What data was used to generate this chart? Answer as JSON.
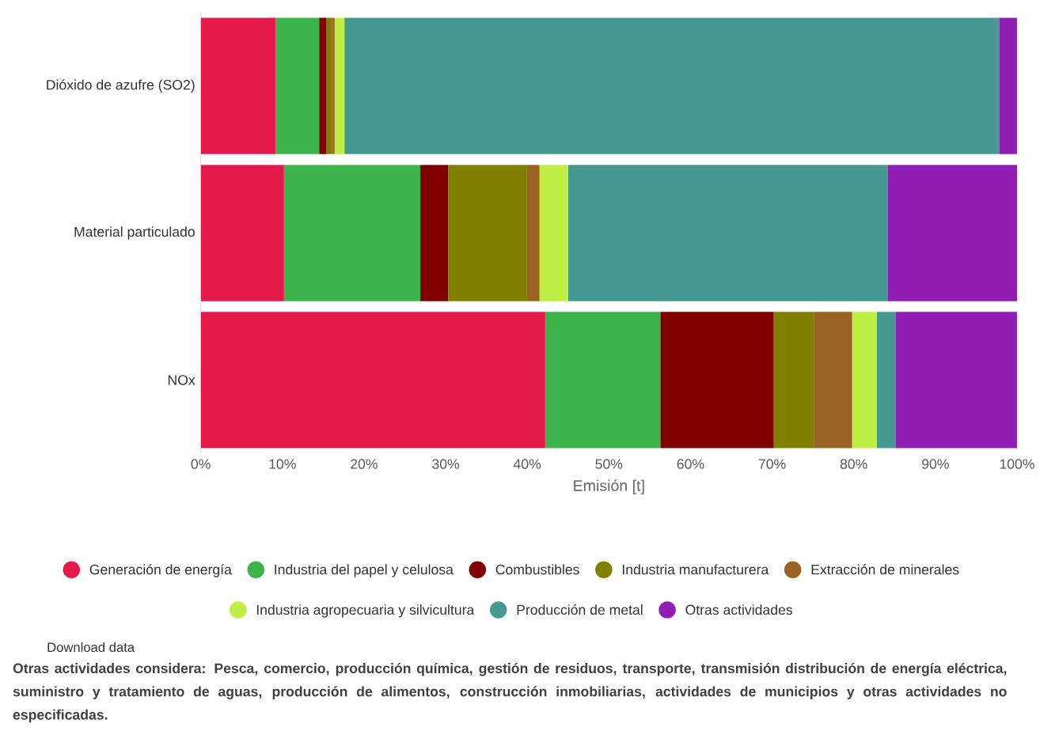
{
  "chart_data": {
    "type": "bar",
    "orientation": "horizontal",
    "stacked": true,
    "xlabel": "Emisión [t]",
    "categories": [
      "Dióxido de azufre (SO2)",
      "Material particulado",
      "NOx"
    ],
    "series": [
      {
        "name": "Generación de energía",
        "color": "#e41a4b",
        "values": [
          9.2,
          10.2,
          42.2
        ]
      },
      {
        "name": "Industria del papel y celulosa",
        "color": "#3cb44b",
        "values": [
          5.3,
          16.7,
          14.1
        ]
      },
      {
        "name": "Combustibles",
        "color": "#800000",
        "values": [
          0.9,
          3.4,
          13.9
        ]
      },
      {
        "name": "Industria manufacturera",
        "color": "#808000",
        "values": [
          0.7,
          9.6,
          4.9
        ]
      },
      {
        "name": "Extracción de minerales",
        "color": "#9a6324",
        "values": [
          0.3,
          1.6,
          4.7
        ]
      },
      {
        "name": "Industria agropecuaria y silvicultura",
        "color": "#bfef45",
        "values": [
          1.2,
          3.5,
          3.0
        ]
      },
      {
        "name": "Producción de metal",
        "color": "#469990",
        "values": [
          80.2,
          39.2,
          2.3
        ]
      },
      {
        "name": "Otras actividades",
        "color": "#911eb4",
        "values": [
          2.2,
          15.9,
          14.9
        ]
      }
    ],
    "xlim": [
      0,
      100
    ],
    "xticks": [
      {
        "value": 0,
        "label": "0%"
      },
      {
        "value": 10,
        "label": "10%"
      },
      {
        "value": 20,
        "label": "20%"
      },
      {
        "value": 30,
        "label": "30%"
      },
      {
        "value": 40,
        "label": "40%"
      },
      {
        "value": 50,
        "label": "50%"
      },
      {
        "value": 60,
        "label": "60%"
      },
      {
        "value": 70,
        "label": "70%"
      },
      {
        "value": 80,
        "label": "80%"
      },
      {
        "value": 90,
        "label": "90%"
      },
      {
        "value": 100,
        "label": "100%"
      }
    ],
    "legend": "bottom",
    "annotations": [
      "Download data",
      "Otras actividades considera: Pesca, comercio, producción química, gestión de residuos, transporte, transmisión distribución de energía eléctrica, suministro y tratamiento de aguas, producción de alimentos, construcción inmobiliarias, actividades de municipios y otras actividades no especificadas."
    ]
  }
}
